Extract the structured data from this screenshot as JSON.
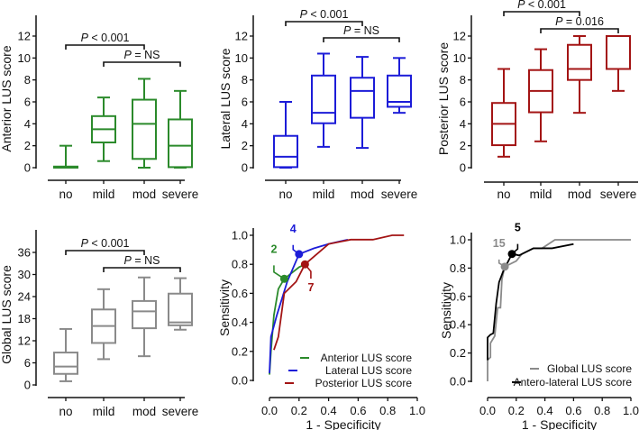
{
  "colors": {
    "anterior": "#2b8a2b",
    "lateral": "#1c1cd8",
    "posterior": "#a31414",
    "global": "#8a8a8a",
    "antero_lateral": "#000000"
  },
  "chart_data": [
    {
      "type": "box",
      "id": "anterior",
      "ylabel": "Anterior LUS score",
      "categories": [
        "no",
        "mild",
        "mod",
        "severe"
      ],
      "ylim": [
        0,
        14
      ],
      "yticks": [
        0,
        2,
        4,
        6,
        8,
        10,
        12
      ],
      "boxes": [
        {
          "min": 0,
          "q1": 0,
          "median": 0,
          "q3": 0.1,
          "max": 2
        },
        {
          "min": 0.6,
          "q1": 2.3,
          "median": 3.5,
          "q3": 4.7,
          "max": 6.4
        },
        {
          "min": 0,
          "q1": 0.8,
          "median": 4,
          "q3": 6.2,
          "max": 8.1
        },
        {
          "min": 0,
          "q1": 0.05,
          "median": 2,
          "q3": 4.4,
          "max": 7
        }
      ],
      "comparisons": [
        {
          "from": "no",
          "to": "mod",
          "label_p": "P",
          "label_rest": " < 0.001"
        },
        {
          "from": "mild",
          "to": "severe",
          "label_p": "P",
          "label_rest": " = NS"
        }
      ]
    },
    {
      "type": "box",
      "id": "lateral",
      "ylabel": "Lateral LUS score",
      "categories": [
        "no",
        "mild",
        "mod",
        "severe"
      ],
      "ylim": [
        0,
        14
      ],
      "yticks": [
        0,
        2,
        4,
        6,
        8,
        10,
        12
      ],
      "boxes": [
        {
          "min": 0,
          "q1": 0.05,
          "median": 1,
          "q3": 2.9,
          "max": 6
        },
        {
          "min": 1.9,
          "q1": 4.05,
          "median": 5,
          "q3": 8.4,
          "max": 10.4
        },
        {
          "min": 1.8,
          "q1": 4.55,
          "median": 7,
          "q3": 8.2,
          "max": 10.1
        },
        {
          "min": 5,
          "q1": 5.55,
          "median": 6,
          "q3": 8.4,
          "max": 10
        }
      ],
      "comparisons": [
        {
          "from": "no",
          "to": "mod",
          "label_p": "P",
          "label_rest": " < 0.001"
        },
        {
          "from": "mild",
          "to": "severe",
          "label_p": "P",
          "label_rest": " = NS"
        }
      ]
    },
    {
      "type": "box",
      "id": "posterior",
      "ylabel": "Posterior LUS score",
      "categories": [
        "no",
        "mild",
        "mod",
        "severe"
      ],
      "ylim": [
        0,
        14
      ],
      "yticks": [
        0,
        2,
        4,
        6,
        8,
        10,
        12
      ],
      "boxes": [
        {
          "min": 1,
          "q1": 2.05,
          "median": 4,
          "q3": 5.9,
          "max": 9
        },
        {
          "min": 2.4,
          "q1": 5.05,
          "median": 7,
          "q3": 8.9,
          "max": 10.8
        },
        {
          "min": 5,
          "q1": 8,
          "median": 9,
          "q3": 11.2,
          "max": 12
        },
        {
          "min": 7,
          "q1": 9,
          "median": 12,
          "q3": 12,
          "max": 12
        }
      ],
      "comparisons": [
        {
          "from": "no",
          "to": "mod",
          "label_p": "P",
          "label_rest": " < 0.001"
        },
        {
          "from": "mild",
          "to": "severe",
          "label_p": "P",
          "label_rest": " = 0.016"
        }
      ]
    },
    {
      "type": "box",
      "id": "global",
      "ylabel": "Global LUS score",
      "categories": [
        "no",
        "mild",
        "mod",
        "severe"
      ],
      "ylim": [
        0,
        42
      ],
      "yticks": [
        0,
        6,
        12,
        18,
        24,
        30,
        36
      ],
      "boxes": [
        {
          "min": 1,
          "q1": 3,
          "median": 5,
          "q3": 8.8,
          "max": 15.2
        },
        {
          "min": 7,
          "q1": 11.4,
          "median": 16,
          "q3": 20.5,
          "max": 26
        },
        {
          "min": 7.8,
          "q1": 15.4,
          "median": 20,
          "q3": 22.8,
          "max": 29.2
        },
        {
          "min": 15,
          "q1": 16.2,
          "median": 17,
          "q3": 24.8,
          "max": 29
        }
      ],
      "comparisons": [
        {
          "from": "no",
          "to": "mod",
          "label_p": "P",
          "label_rest": " < 0.001"
        },
        {
          "from": "mild",
          "to": "severe",
          "label_p": "P",
          "label_rest": " = NS"
        }
      ]
    },
    {
      "type": "line",
      "id": "roc1",
      "xlabel": "1 - Specificity",
      "ylabel": "Sensitivity",
      "xlim": [
        0,
        1
      ],
      "ylim": [
        0,
        1
      ],
      "xticks": [
        "0.0",
        "0.2",
        "0.4",
        "0.6",
        "0.8",
        "1.0"
      ],
      "yticks": [
        "0.0",
        "0.2",
        "0.4",
        "0.6",
        "0.8",
        "1.0"
      ],
      "legend_position": "bottom-right",
      "series": [
        {
          "name": "Anterior LUS score",
          "color_key": "anterior",
          "points": [
            [
              0,
              0.04
            ],
            [
              0.01,
              0.2
            ],
            [
              0.03,
              0.45
            ],
            [
              0.06,
              0.63
            ],
            [
              0.1,
              0.7
            ],
            [
              0.2,
              0.78
            ],
            [
              0.24,
              0.8
            ]
          ],
          "cutoff": {
            "x": 0.1,
            "y": 0.7,
            "label": "2",
            "lx": 0.03,
            "ly": 0.88
          }
        },
        {
          "name": "Lateral  LUS score",
          "color_key": "lateral",
          "points": [
            [
              0,
              0.05
            ],
            [
              0.01,
              0.3
            ],
            [
              0.05,
              0.45
            ],
            [
              0.12,
              0.68
            ],
            [
              0.2,
              0.87
            ],
            [
              0.3,
              0.91
            ],
            [
              0.4,
              0.94
            ],
            [
              0.53,
              0.97
            ]
          ],
          "cutoff": {
            "x": 0.2,
            "y": 0.87,
            "label": "4",
            "lx": 0.16,
            "ly": 1.02
          }
        },
        {
          "name": "Posterior  LUS score",
          "color_key": "posterior",
          "points": [
            [
              0.03,
              0.21
            ],
            [
              0.06,
              0.3
            ],
            [
              0.1,
              0.6
            ],
            [
              0.18,
              0.68
            ],
            [
              0.24,
              0.8
            ],
            [
              0.4,
              0.94
            ],
            [
              0.55,
              0.97
            ],
            [
              0.7,
              0.97
            ],
            [
              0.83,
              1.0
            ],
            [
              0.91,
              1.0
            ]
          ],
          "cutoff": {
            "x": 0.24,
            "y": 0.8,
            "label": "7",
            "lx": 0.28,
            "ly": 0.67
          }
        }
      ]
    },
    {
      "type": "line",
      "id": "roc2",
      "xlabel": "1 - Specificity",
      "ylabel": "Sensitivity",
      "xlim": [
        0,
        1
      ],
      "ylim": [
        0,
        1
      ],
      "xticks": [
        "0.0",
        "0.2",
        "0.4",
        "0.6",
        "0.8",
        "1.0"
      ],
      "yticks": [
        "0.0",
        "0.2",
        "0.4",
        "0.6",
        "0.8",
        "1.0"
      ],
      "legend_position": "bottom-right",
      "series": [
        {
          "name": "Global  LUS score",
          "color_key": "global",
          "points": [
            [
              0,
              0
            ],
            [
              0,
              0.15
            ],
            [
              0.02,
              0.17
            ],
            [
              0.02,
              0.27
            ],
            [
              0.05,
              0.32
            ],
            [
              0.06,
              0.42
            ],
            [
              0.07,
              0.52
            ],
            [
              0.09,
              0.52
            ],
            [
              0.1,
              0.72
            ],
            [
              0.12,
              0.81
            ],
            [
              0.2,
              0.85
            ],
            [
              0.24,
              0.9
            ],
            [
              0.32,
              0.94
            ],
            [
              0.38,
              0.94
            ],
            [
              0.47,
              1.0
            ],
            [
              1.0,
              1.0
            ]
          ],
          "cutoff": {
            "x": 0.12,
            "y": 0.81,
            "label": "15",
            "lx": 0.08,
            "ly": 0.95
          }
        },
        {
          "name": "Antero-lateral LUS score",
          "color_key": "antero_lateral",
          "points": [
            [
              0,
              0.15
            ],
            [
              0,
              0.31
            ],
            [
              0.02,
              0.33
            ],
            [
              0.04,
              0.34
            ],
            [
              0.06,
              0.55
            ],
            [
              0.08,
              0.7
            ],
            [
              0.11,
              0.78
            ],
            [
              0.17,
              0.9
            ],
            [
              0.22,
              0.89
            ],
            [
              0.32,
              0.94
            ],
            [
              0.38,
              0.94
            ],
            [
              0.45,
              0.94
            ],
            [
              0.6,
              0.97
            ]
          ],
          "cutoff": {
            "x": 0.17,
            "y": 0.9,
            "label": "5",
            "lx": 0.21,
            "ly": 1.06
          }
        }
      ]
    }
  ]
}
